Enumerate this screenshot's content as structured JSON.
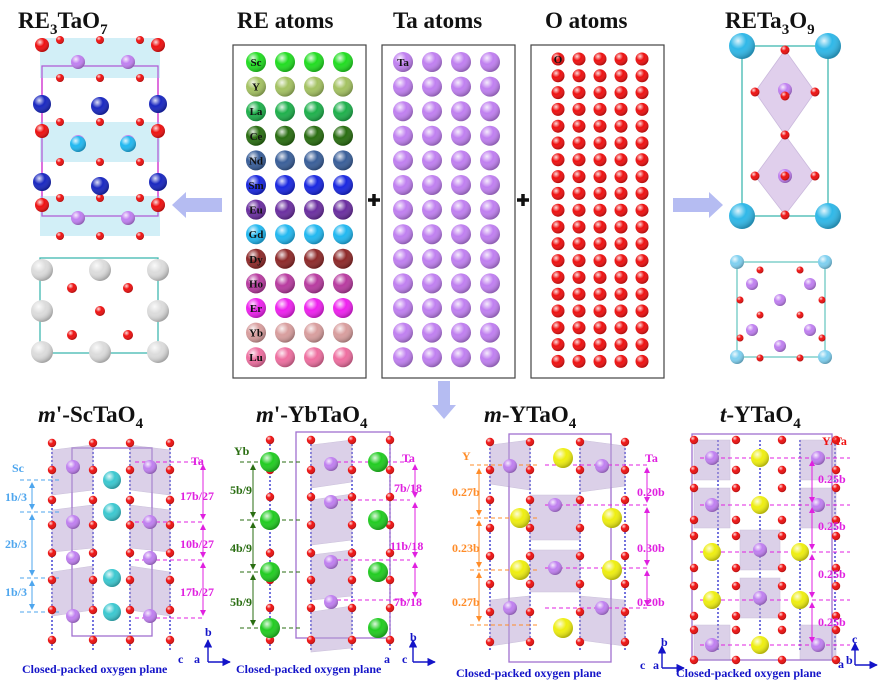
{
  "titles": {
    "re3tao7": [
      "RE",
      "3",
      "TaO",
      "7"
    ],
    "re_atoms": "RE atoms",
    "ta_atoms": "Ta atoms",
    "o_atoms": "O atoms",
    "reta3o9": [
      "RETa",
      "3",
      "O",
      "9"
    ],
    "m_sctao4": [
      "m",
      "'-ScTaO",
      "4"
    ],
    "m_ybtao4": [
      "m",
      "'-YbTaO",
      "4"
    ],
    "m_ytao4": [
      "m",
      "-YTaO",
      "4"
    ],
    "t_ytao4": [
      "t",
      "-YTaO",
      "4"
    ]
  },
  "re_atoms": [
    {
      "label": "Sc",
      "color": "#22dd22"
    },
    {
      "label": "Y",
      "color": "#a4c262"
    },
    {
      "label": "La",
      "color": "#1fb04c"
    },
    {
      "label": "Ce",
      "color": "#2a6e12"
    },
    {
      "label": "Nd",
      "color": "#3a5f99"
    },
    {
      "label": "Sm",
      "color": "#1a28e0"
    },
    {
      "label": "Eu",
      "color": "#6b2fa0"
    },
    {
      "label": "Gd",
      "color": "#22b8f0"
    },
    {
      "label": "Dy",
      "color": "#8e2a2a"
    },
    {
      "label": "Ho",
      "color": "#b83ca0"
    },
    {
      "label": "Er",
      "color": "#ee22ee"
    },
    {
      "label": "Yb",
      "color": "#d89e9e"
    },
    {
      "label": "Lu",
      "color": "#ee6fa0"
    }
  ],
  "ta_label": "Ta",
  "o_label": "O",
  "colors": {
    "ta": "#c080f0",
    "o": "#ee1111",
    "sc": "#3cc8d0",
    "yb": "#22cc22",
    "y": "#eeee11",
    "sm": "#1a28c0",
    "cell": "#a070d0",
    "cyan_cell": "#40b8b0",
    "magenta": "#e020e0",
    "blue_dim": "#4ea6ee",
    "green_dim": "#2a6e12",
    "orange_dim": "#ff8c28",
    "red": "#ee1111"
  },
  "sctao4": {
    "left_label": "Sc",
    "left_dims": [
      "1b/3",
      "2b/3",
      "1b/3"
    ],
    "right_label": "Ta",
    "right_dims": [
      "17b/27",
      "10b/27",
      "17b/27"
    ],
    "axes": [
      "b",
      "c",
      "a"
    ],
    "caption": "Closed-packed oxygen plane"
  },
  "ybtao4": {
    "left_label": "Yb",
    "left_dims": [
      "5b/9",
      "4b/9",
      "5b/9"
    ],
    "right_label": "Ta",
    "right_dims": [
      "7b/18",
      "11b/18",
      "7b/18"
    ],
    "axes": [
      "b",
      "a",
      "c"
    ],
    "caption": "Closed-packed oxygen plane"
  },
  "ytao4_m": {
    "left_label": "Y",
    "left_dims": [
      "0.27b",
      "0.23b",
      "0.27b"
    ],
    "right_label": "Ta",
    "right_dims": [
      "0.20b",
      "0.30b",
      "0.20b"
    ],
    "axes": [
      "b",
      "c",
      "a"
    ],
    "caption": "Closed-packed oxygen plane"
  },
  "ytao4_t": {
    "right_label": "Y/Ta",
    "right_dims": [
      "0.25b",
      "0.25b",
      "0.25b",
      "0.25b"
    ],
    "axes": [
      "c",
      "a",
      "b"
    ],
    "caption": "Closed-packed oxygen plane"
  }
}
